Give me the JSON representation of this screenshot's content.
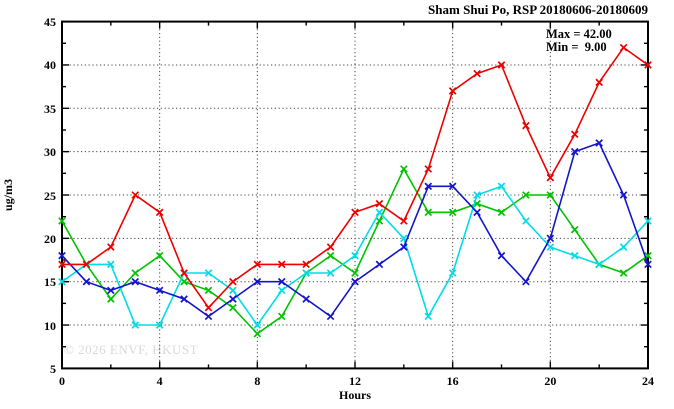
{
  "title": "Sham Shui Po, RSP 20180606-20180609",
  "annotation": {
    "max_label": "Max = 42.00",
    "min_label": "Min =  9.00"
  },
  "watermark": "© 2026 ENVF, HKUST",
  "chart_data": {
    "type": "line",
    "title": "Sham Shui Po, RSP 20180606-20180609",
    "xlabel": "Hours",
    "ylabel": "ug/m3",
    "xlim": [
      0,
      24
    ],
    "ylim": [
      5,
      45
    ],
    "x_ticks": [
      0,
      4,
      8,
      12,
      16,
      20,
      24
    ],
    "y_ticks": [
      5,
      10,
      15,
      20,
      25,
      30,
      35,
      40,
      45
    ],
    "x_minor_step": 2,
    "y_minor_step": 2.5,
    "grid": true,
    "legend": "none",
    "stats": {
      "max": 42.0,
      "min": 9.0
    },
    "x": [
      0,
      1,
      2,
      3,
      4,
      5,
      6,
      7,
      8,
      9,
      10,
      11,
      12,
      13,
      14,
      15,
      16,
      17,
      18,
      19,
      20,
      21,
      22,
      23,
      24
    ],
    "series": [
      {
        "name": "series-green",
        "color": "#00c400",
        "values": [
          22,
          17,
          13,
          16,
          18,
          15,
          14,
          12,
          9,
          11,
          16,
          18,
          16,
          22,
          28,
          23,
          23,
          24,
          23,
          25,
          25,
          21,
          17,
          16,
          18
        ]
      },
      {
        "name": "series-cyan",
        "color": "#00dde6",
        "values": [
          15,
          17,
          17,
          10,
          10,
          16,
          16,
          14,
          10,
          14,
          16,
          16,
          18,
          23,
          20,
          11,
          16,
          25,
          26,
          22,
          19,
          18,
          17,
          19,
          22
        ]
      },
      {
        "name": "series-blue",
        "color": "#1414cc",
        "values": [
          18,
          15,
          14,
          15,
          14,
          13,
          11,
          13,
          15,
          15,
          13,
          11,
          15,
          17,
          19,
          26,
          26,
          23,
          18,
          15,
          20,
          30,
          31,
          25,
          17
        ]
      },
      {
        "name": "series-red",
        "color": "#ee0000",
        "values": [
          17,
          17,
          19,
          25,
          23,
          16,
          12,
          15,
          17,
          17,
          17,
          19,
          23,
          24,
          22,
          28,
          37,
          39,
          40,
          33,
          27,
          32,
          38,
          42,
          40
        ]
      }
    ]
  }
}
